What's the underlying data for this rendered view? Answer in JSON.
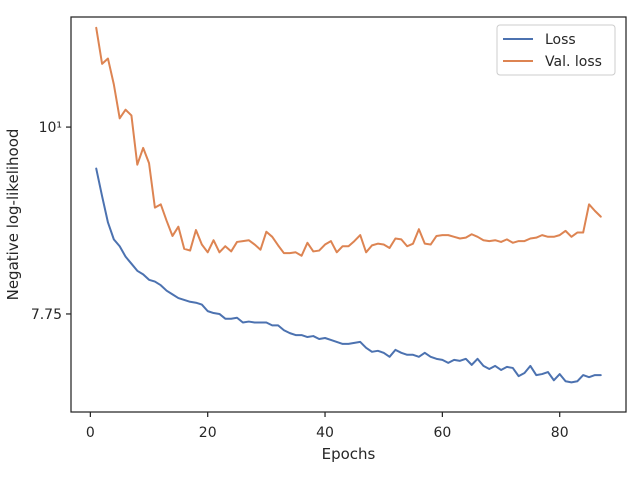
{
  "chart_data": {
    "type": "line",
    "xlabel": "Epochs",
    "ylabel": "Negative log-likelihood",
    "xlim": [
      -3.3,
      91.3
    ],
    "ylim": [
      6.78,
      11.62
    ],
    "x_ticks": [
      {
        "value": 0,
        "label": "0"
      },
      {
        "value": 20,
        "label": "20"
      },
      {
        "value": 40,
        "label": "40"
      },
      {
        "value": 60,
        "label": "60"
      },
      {
        "value": 80,
        "label": "80"
      }
    ],
    "y_ticks": [
      {
        "value": 10.0,
        "label": "10¹"
      },
      {
        "value": 7.75,
        "label": "7.75"
      }
    ],
    "grid": false,
    "legend_position": "top-right",
    "x": [
      1,
      2,
      3,
      4,
      5,
      6,
      7,
      8,
      9,
      10,
      11,
      12,
      13,
      14,
      15,
      16,
      17,
      18,
      19,
      20,
      21,
      22,
      23,
      24,
      25,
      26,
      27,
      28,
      29,
      30,
      31,
      32,
      33,
      34,
      35,
      36,
      37,
      38,
      39,
      40,
      41,
      42,
      43,
      44,
      45,
      46,
      47,
      48,
      49,
      50,
      51,
      52,
      53,
      54,
      55,
      56,
      57,
      58,
      59,
      60,
      61,
      62,
      63,
      64,
      65,
      66,
      67,
      68,
      69,
      70,
      71,
      72,
      73,
      74,
      75,
      76,
      77,
      78,
      79,
      80,
      81,
      82,
      83,
      84,
      85,
      86,
      87
    ],
    "series": [
      {
        "name": "Loss",
        "color": "#4c72b0",
        "values": [
          9.45,
          9.1,
          8.78,
          8.58,
          8.5,
          8.38,
          8.3,
          8.22,
          8.18,
          8.12,
          8.1,
          8.06,
          8.0,
          7.96,
          7.92,
          7.9,
          7.88,
          7.87,
          7.85,
          7.78,
          7.76,
          7.75,
          7.7,
          7.7,
          7.71,
          7.66,
          7.67,
          7.66,
          7.66,
          7.66,
          7.63,
          7.63,
          7.58,
          7.55,
          7.53,
          7.53,
          7.51,
          7.52,
          7.49,
          7.5,
          7.48,
          7.46,
          7.44,
          7.44,
          7.45,
          7.46,
          7.4,
          7.36,
          7.37,
          7.35,
          7.31,
          7.38,
          7.35,
          7.33,
          7.33,
          7.31,
          7.35,
          7.31,
          7.29,
          7.28,
          7.25,
          7.28,
          7.27,
          7.29,
          7.23,
          7.29,
          7.22,
          7.19,
          7.22,
          7.18,
          7.21,
          7.2,
          7.12,
          7.15,
          7.22,
          7.13,
          7.14,
          7.16,
          7.08,
          7.14,
          7.07,
          7.06,
          7.07,
          7.13,
          7.11,
          7.13,
          7.13
        ]
      },
      {
        "name": "Val. loss",
        "color": "#dd8452",
        "values": [
          11.45,
          10.9,
          10.98,
          10.6,
          10.12,
          10.24,
          10.16,
          9.5,
          9.72,
          9.52,
          8.96,
          9.0,
          8.8,
          8.62,
          8.73,
          8.47,
          8.45,
          8.69,
          8.52,
          8.43,
          8.57,
          8.43,
          8.5,
          8.44,
          8.55,
          8.56,
          8.57,
          8.52,
          8.46,
          8.67,
          8.61,
          8.51,
          8.42,
          8.42,
          8.43,
          8.39,
          8.54,
          8.44,
          8.45,
          8.52,
          8.56,
          8.43,
          8.5,
          8.5,
          8.56,
          8.63,
          8.43,
          8.51,
          8.53,
          8.52,
          8.48,
          8.59,
          8.58,
          8.5,
          8.53,
          8.7,
          8.53,
          8.52,
          8.62,
          8.63,
          8.63,
          8.61,
          8.59,
          8.6,
          8.64,
          8.61,
          8.57,
          8.56,
          8.57,
          8.55,
          8.58,
          8.54,
          8.56,
          8.56,
          8.59,
          8.6,
          8.63,
          8.61,
          8.61,
          8.63,
          8.68,
          8.61,
          8.66,
          8.66,
          9.0,
          8.92,
          8.85
        ]
      }
    ]
  }
}
